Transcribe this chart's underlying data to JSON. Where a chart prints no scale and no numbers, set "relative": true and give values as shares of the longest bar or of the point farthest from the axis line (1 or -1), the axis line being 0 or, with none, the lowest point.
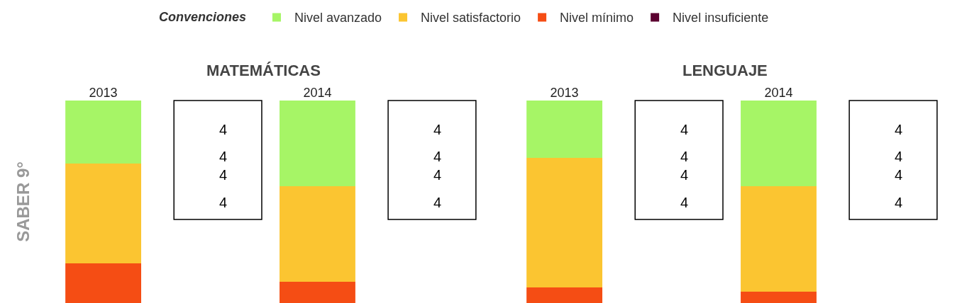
{
  "chart_data": [
    {
      "type": "bar",
      "title": "MATEMÁTICAS",
      "ylabel": "SABER 9°",
      "legend_title": "Convenciones",
      "legend": "top",
      "stacked": true,
      "relative": true,
      "categories": [
        "2013",
        "2014"
      ],
      "series": [
        {
          "name": "Nivel insuficiente",
          "color": "#5c0030",
          "values": [
            0,
            0
          ]
        },
        {
          "name": "Nivel mínimo",
          "color": "#f54d14",
          "values": [
            0.196,
            0.105
          ]
        },
        {
          "name": "Nivel satisfactorio",
          "color": "#fbc531",
          "values": [
            0.493,
            0.472
          ]
        },
        {
          "name": "Nivel avanzado",
          "color": "#a6f566",
          "values": [
            0.311,
            0.423
          ]
        }
      ],
      "annotations": [
        "4",
        "4",
        "4",
        "4",
        "4",
        "4",
        "4",
        "4"
      ]
    },
    {
      "type": "bar",
      "title": "LENGUAJE",
      "stacked": true,
      "relative": true,
      "categories": [
        "2013",
        "2014"
      ],
      "series": [
        {
          "color": "#5c0030",
          "values": [
            0,
            0
          ]
        },
        {
          "color": "#f54d14",
          "values": [
            0.077,
            0.056
          ]
        },
        {
          "color": "#fbc531",
          "values": [
            0.64,
            0.521
          ]
        },
        {
          "color": "#a6f566",
          "values": [
            0.283,
            0.423
          ]
        }
      ],
      "annotations": [
        "4",
        "4",
        "4",
        "4",
        "4",
        "4",
        "4",
        "4"
      ]
    }
  ]
}
